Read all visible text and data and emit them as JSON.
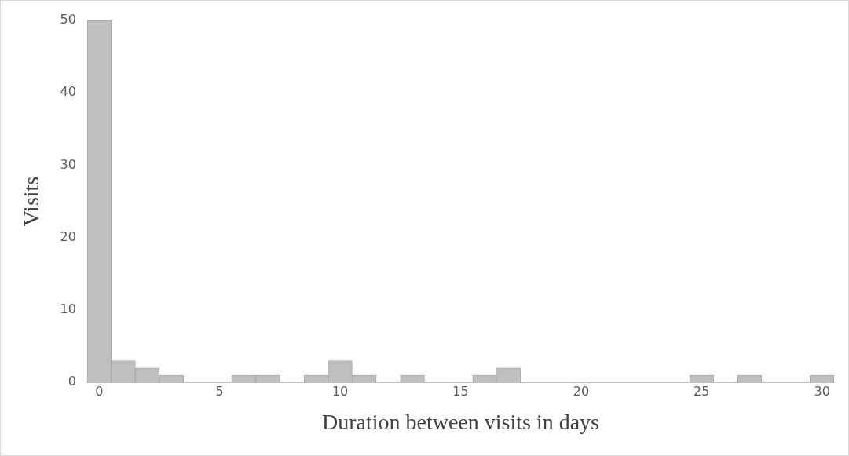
{
  "chart_data": {
    "type": "histogram",
    "xlabel": "Duration between visits in days",
    "ylabel": "Visits",
    "bins": [
      -0.5,
      0.5,
      1.5,
      2.5,
      3.5,
      4.5,
      5.5,
      6.5,
      7.5,
      8.5,
      9.5,
      10.5,
      11.5,
      12.5,
      13.5,
      14.5,
      15.5,
      16.5,
      17.5,
      18.5,
      19.5,
      20.5,
      21.5,
      22.5,
      23.5,
      24.5,
      25.5,
      26.5,
      27.5,
      28.5,
      29.5,
      30.5
    ],
    "values": [
      50,
      3,
      2,
      1,
      0,
      0,
      1,
      1,
      0,
      1,
      3,
      1,
      0,
      1,
      0,
      0,
      1,
      2,
      0,
      0,
      0,
      0,
      0,
      0,
      0,
      1,
      0,
      1,
      0,
      0,
      1
    ],
    "color": "#bfbfbf",
    "xlim": [
      -0.5,
      30.5
    ],
    "xticks": [
      0,
      5,
      10,
      15,
      20,
      25,
      30
    ],
    "ylim": [
      0,
      50
    ],
    "yticks": [
      0,
      10,
      20,
      30,
      40,
      50
    ],
    "grid": false,
    "legend": false
  }
}
